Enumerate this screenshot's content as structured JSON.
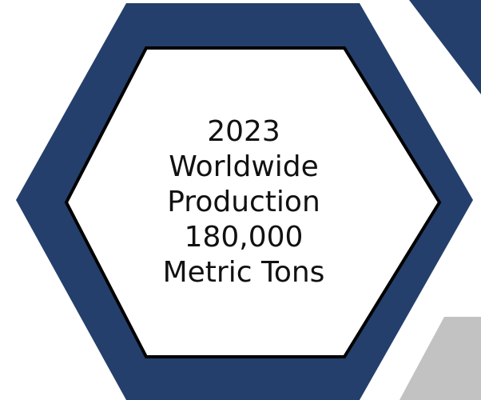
{
  "colors": {
    "outer_hexagon": "#243f6b",
    "inner_hexagon_fill": "#ffffff",
    "inner_hexagon_border": "#000000",
    "top_right_shape": "#243f6b",
    "bottom_right_shape": "#c2c2c2",
    "text": "#111111"
  },
  "label": {
    "line1": "2023",
    "line2": "Worldwide",
    "line3": "Production",
    "line4": "180,000",
    "line5": "Metric Tons"
  }
}
